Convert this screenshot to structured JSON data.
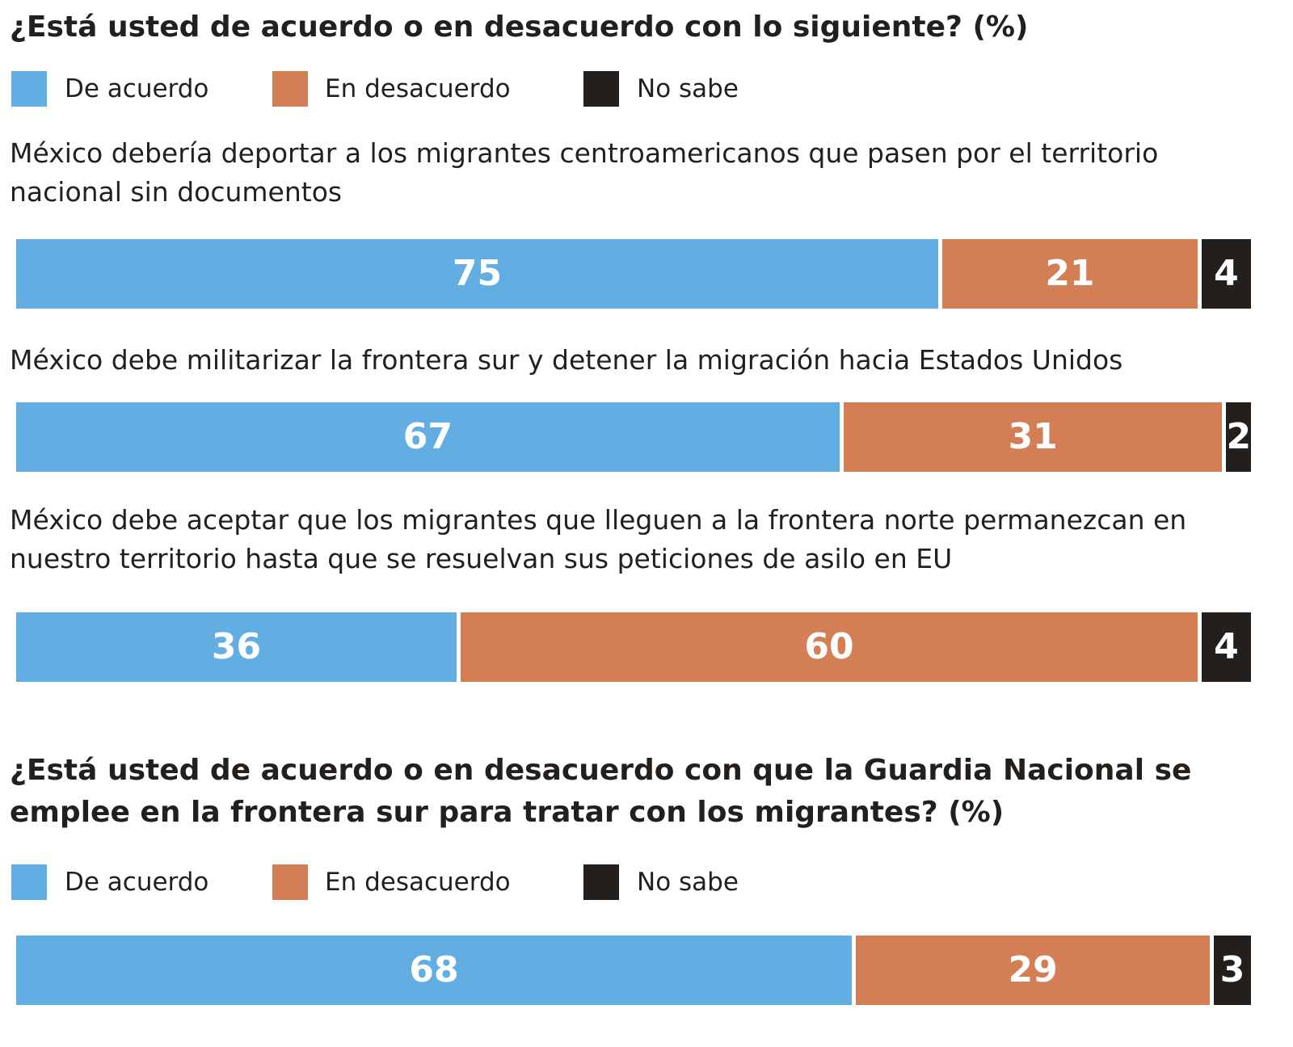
{
  "chart_data": [
    {
      "type": "bar",
      "stacked": true,
      "orientation": "horizontal",
      "title": "¿Está usted de acuerdo o en desacuerdo con lo siguiente? (%)",
      "categories": [
        "México debería deportar a los migrantes centroamericanos que pasen por el territorio nacional sin documentos",
        "México debe militarizar la frontera sur y detener la migración hacia Estados Unidos",
        "México debe aceptar que los migrantes que lleguen a la frontera norte permanezcan en nuestro territorio hasta que se resuelvan sus peticiones de asilo en EU"
      ],
      "series": [
        {
          "name": "De acuerdo",
          "color": "#62aee2",
          "values": [
            75,
            67,
            36
          ]
        },
        {
          "name": "En desacuerdo",
          "color": "#d37e55",
          "values": [
            21,
            31,
            60
          ]
        },
        {
          "name": "No sabe",
          "color": "#231f1c",
          "values": [
            4,
            2,
            4
          ]
        }
      ]
    },
    {
      "type": "bar",
      "stacked": true,
      "orientation": "horizontal",
      "title": "¿Está usted de acuerdo o en desacuerdo con que la Guardia Nacional se emplee en la frontera sur para tratar con los migrantes? (%)",
      "categories": [
        null
      ],
      "series": [
        {
          "name": "De acuerdo",
          "color": "#62aee2",
          "values": [
            68
          ]
        },
        {
          "name": "En desacuerdo",
          "color": "#d37e55",
          "values": [
            29
          ]
        },
        {
          "name": "No sabe",
          "color": "#231f1c",
          "values": [
            3
          ]
        }
      ]
    }
  ]
}
